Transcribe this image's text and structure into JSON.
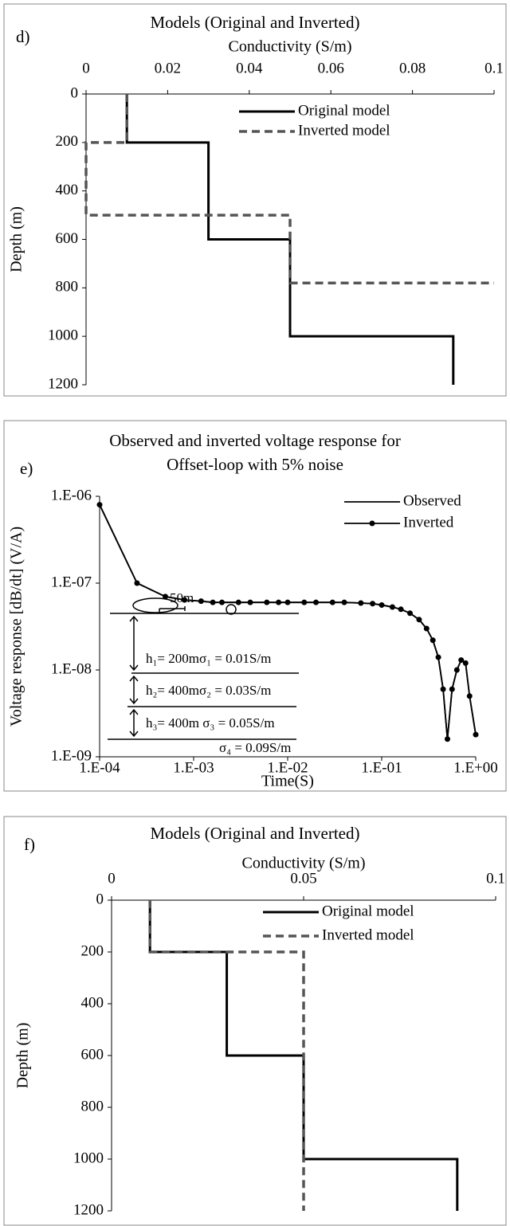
{
  "chart_data": [
    {
      "type": "line",
      "panel_label": "d)",
      "title": [
        "Models (Original  and Inverted)"
      ],
      "xlabel": "Conductivity (S/m)",
      "ylabel": "Depth (m)",
      "x_axis_position": "top",
      "y_inverted": true,
      "xlim": [
        0,
        0.1
      ],
      "xticks": [
        0,
        0.02,
        0.04,
        0.06,
        0.08,
        0.1
      ],
      "ylim": [
        0,
        1200
      ],
      "yticks": [
        0,
        200,
        400,
        600,
        800,
        1000,
        1200
      ],
      "legend": "upper right",
      "series": [
        {
          "name": "Original model",
          "color": "#000000",
          "dash": "solid",
          "x": [
            0.01,
            0.01,
            0.03,
            0.03,
            0.05,
            0.05,
            0.09,
            0.09
          ],
          "y": [
            0,
            200,
            200,
            600,
            600,
            1000,
            1000,
            1200
          ]
        },
        {
          "name": "Inverted model",
          "color": "#555555",
          "dash": "dashed",
          "x": [
            0.01,
            0.01,
            0,
            0,
            0.05,
            0.05,
            0.1
          ],
          "y": [
            0,
            200,
            200,
            500,
            500,
            780,
            780
          ]
        }
      ]
    },
    {
      "type": "line",
      "panel_label": "e)",
      "title": [
        "Observed and inverted voltage response for",
        "Offset-loop with 5% noise"
      ],
      "xlabel": "Time(S)",
      "ylabel": "Voltage response [dB/dt] (V/A)",
      "x_axis_position": "bottom",
      "xlog": true,
      "ylog": true,
      "xlim": [
        0.0001,
        1
      ],
      "xticks": [
        {
          "value": 0.0001,
          "label": "1.E-04"
        },
        {
          "value": 0.001,
          "label": "1.E-03"
        },
        {
          "value": 0.01,
          "label": "1.E-02"
        },
        {
          "value": 0.1,
          "label": "1.E-01"
        },
        {
          "value": 1,
          "label": "1.E+00"
        }
      ],
      "ylim": [
        1e-09,
        1e-06
      ],
      "yticks": [
        {
          "value": 1e-09,
          "label": "1.E-09"
        },
        {
          "value": 1e-08,
          "label": "1.E-08"
        },
        {
          "value": 1e-07,
          "label": "1.E-07"
        },
        {
          "value": 1e-06,
          "label": "1.E-06"
        }
      ],
      "legend": "upper right",
      "annotations": [
        "50m",
        "h₁= 200mσ₁ = 0.01S/m",
        "h₂= 400mσ₂ = 0.03S/m",
        "h₃= 400m σ₃ = 0.05S/m",
        "σ₄ = 0.09S/m"
      ],
      "series": [
        {
          "name": "Observed",
          "color": "#000000",
          "dash": "solid",
          "marker": "none",
          "x": [
            0.0001,
            0.00025,
            0.0005,
            0.0008,
            0.0012,
            0.0016,
            0.002,
            0.003,
            0.004,
            0.006,
            0.008,
            0.01,
            0.015,
            0.02,
            0.03,
            0.04,
            0.06,
            0.08,
            0.1,
            0.13,
            0.16,
            0.2,
            0.25,
            0.3,
            0.35,
            0.4,
            0.45,
            0.5,
            0.56,
            0.63,
            0.7,
            0.78,
            0.86,
            1
          ],
          "y": [
            8e-07,
            1e-07,
            7e-08,
            6.4e-08,
            6.2e-08,
            6e-08,
            6e-08,
            6e-08,
            6e-08,
            6e-08,
            6e-08,
            6e-08,
            6e-08,
            6e-08,
            6e-08,
            6e-08,
            5.9e-08,
            5.8e-08,
            5.6e-08,
            5.3e-08,
            5e-08,
            4.5e-08,
            3.8e-08,
            3e-08,
            2.2e-08,
            1.4e-08,
            6e-09,
            1.6e-09,
            6e-09,
            1e-08,
            1.3e-08,
            1.2e-08,
            5e-09,
            1.8e-09
          ]
        },
        {
          "name": "Inverted",
          "color": "#000000",
          "dash": "solid",
          "marker": "circle",
          "x": [
            0.0001,
            0.00025,
            0.0005,
            0.0008,
            0.0012,
            0.0016,
            0.002,
            0.003,
            0.004,
            0.006,
            0.008,
            0.01,
            0.015,
            0.02,
            0.03,
            0.04,
            0.06,
            0.08,
            0.1,
            0.13,
            0.16,
            0.2,
            0.25,
            0.3,
            0.35,
            0.4,
            0.45,
            0.5,
            0.56,
            0.63,
            0.7,
            0.78,
            0.86,
            1
          ],
          "y": [
            8e-07,
            1e-07,
            7e-08,
            6.4e-08,
            6.2e-08,
            6e-08,
            6e-08,
            6e-08,
            6e-08,
            6e-08,
            6e-08,
            6e-08,
            6e-08,
            6e-08,
            6e-08,
            6e-08,
            5.9e-08,
            5.8e-08,
            5.6e-08,
            5.3e-08,
            5e-08,
            4.5e-08,
            3.8e-08,
            3e-08,
            2.2e-08,
            1.4e-08,
            6e-09,
            1.6e-09,
            6e-09,
            1e-08,
            1.3e-08,
            1.2e-08,
            5e-09,
            1.8e-09
          ]
        }
      ]
    },
    {
      "type": "line",
      "panel_label": "f)",
      "title": [
        "Models (Original  and Inverted)"
      ],
      "xlabel": "Conductivity (S/m)",
      "ylabel": "Depth (m)",
      "x_axis_position": "top",
      "y_inverted": true,
      "xlim": [
        0,
        0.1
      ],
      "xticks": [
        0,
        0.05,
        0.1
      ],
      "ylim": [
        0,
        1200
      ],
      "yticks": [
        0,
        200,
        400,
        600,
        800,
        1000,
        1200
      ],
      "legend": "upper right",
      "series": [
        {
          "name": "Original model",
          "color": "#000000",
          "dash": "solid",
          "x": [
            0.01,
            0.01,
            0.03,
            0.03,
            0.05,
            0.05,
            0.09,
            0.09
          ],
          "y": [
            0,
            200,
            200,
            600,
            600,
            1000,
            1000,
            1200
          ]
        },
        {
          "name": "Inverted model",
          "color": "#555555",
          "dash": "dashed",
          "x": [
            0.01,
            0.01,
            0.05,
            0.05
          ],
          "y": [
            0,
            200,
            200,
            1200
          ]
        }
      ]
    }
  ]
}
